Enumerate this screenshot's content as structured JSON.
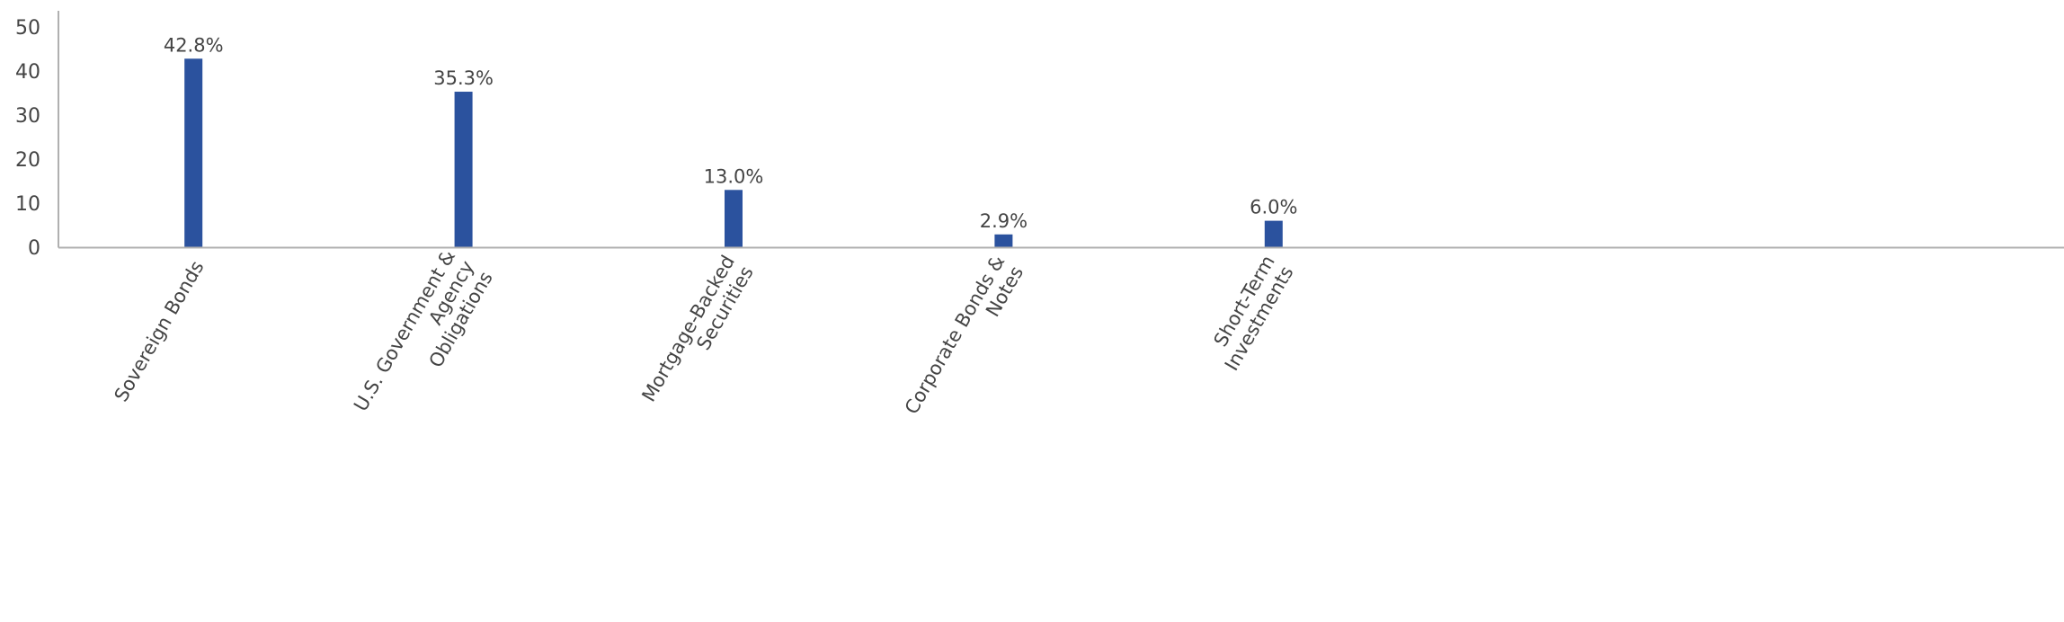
{
  "chart_data": {
    "type": "bar",
    "title": "",
    "xlabel": "",
    "ylabel": "",
    "categories": [
      [
        "Sovereign Bonds"
      ],
      [
        "U.S. Government &",
        "Agency",
        "Obligations"
      ],
      [
        "Mortgage-Backed",
        "Securities"
      ],
      [
        "Corporate Bonds &",
        "Notes"
      ],
      [
        "Short-Term",
        "Investments"
      ]
    ],
    "values": [
      42.8,
      35.3,
      13.0,
      2.9,
      6.0
    ],
    "data_labels": [
      "42.8%",
      "35.3%",
      "13.0%",
      "2.9%",
      "6.0%"
    ],
    "ylim": [
      0,
      50
    ],
    "yticks": [
      "0",
      "10",
      "20",
      "30",
      "40",
      "50"
    ],
    "grid": false,
    "legend": "none",
    "colors": {
      "bar": "#2b529e",
      "axis": "#b0b0b0",
      "text": "#444444"
    }
  }
}
